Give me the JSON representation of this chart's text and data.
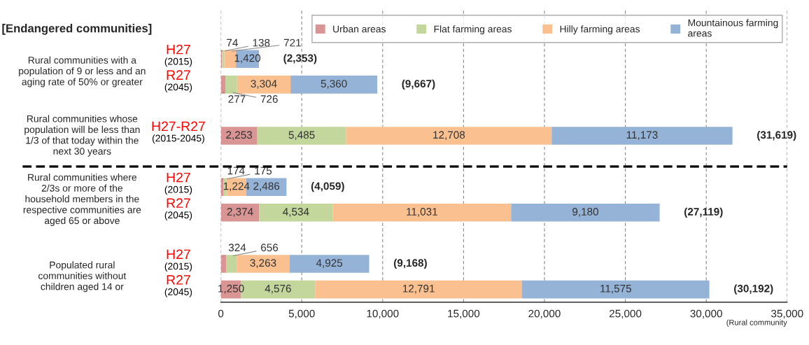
{
  "chart_data": {
    "type": "bar",
    "orientation": "horizontal",
    "stacked": true,
    "title": "[Endangered communities]",
    "xlabel": "(Rural community",
    "categories": [
      "H27\n(2015)",
      "R27\n(2045)",
      "H27-R27\n(2015-2045)",
      "H27\n(2015)",
      "R27\n(2045)",
      "H27\n(2015)",
      "R27\n(2045)"
    ],
    "series": [
      {
        "name": "Urban areas",
        "color": "#d99594",
        "values": [
          74,
          277,
          2253,
          174,
          2374,
          324,
          1250
        ],
        "value_labels": [
          "74",
          "277",
          "2,253",
          "174",
          "2,374",
          "324",
          "1,250"
        ]
      },
      {
        "name": "Flat farming areas",
        "color": "#c3d69b",
        "values": [
          138,
          726,
          5485,
          175,
          4534,
          656,
          4576
        ],
        "value_labels": [
          "138",
          "726",
          "5,485",
          "175",
          "4,534",
          "656",
          "4,576"
        ]
      },
      {
        "name": "Hilly farming areas",
        "color": "#fac090",
        "values": [
          721,
          3304,
          12708,
          1224,
          11031,
          3263,
          12791
        ],
        "value_labels": [
          "721",
          "3,304",
          "12,708",
          "1,224",
          "11,031",
          "3,263",
          "12,791"
        ]
      },
      {
        "name": "Mountainous farming areas",
        "color": "#95b3d7",
        "values": [
          1420,
          5360,
          11173,
          2486,
          9180,
          4925,
          11575
        ],
        "value_labels": [
          "1,420",
          "5,360",
          "11,173",
          "2,486",
          "9,180",
          "4,925",
          "11,575"
        ]
      }
    ],
    "totals": [
      "(2,353)",
      "(9,667)",
      "(31,619)",
      "(4,059)",
      "(27,119)",
      "(9,168)",
      "(30,192)"
    ],
    "annotations": [
      "Rural communities with a\npopulation of 9 or less and an\naging rate of 50% or greater",
      "Rural communities whose\npopulation will be less than\n1/3 of that today within the\nnext 30 years",
      "Rural communities where\n2/3s or more of the\nhousehold members in the\nrespective communities are\naged 65 or above",
      "Populated rural\ncommunities without\nchildren aged 14 or"
    ],
    "xlim": [
      0,
      35000
    ],
    "xticks": [
      {
        "value": 0,
        "label": "0"
      },
      {
        "value": 5000,
        "label": "5,000"
      },
      {
        "value": 10000,
        "label": "10,000"
      },
      {
        "value": 15000,
        "label": "15,000"
      },
      {
        "value": 20000,
        "label": "20,000"
      },
      {
        "value": 25000,
        "label": "25,000"
      },
      {
        "value": 30000,
        "label": "30,000"
      },
      {
        "value": 35000,
        "label": "35,000"
      }
    ],
    "grid": "x",
    "legend": "top right"
  }
}
